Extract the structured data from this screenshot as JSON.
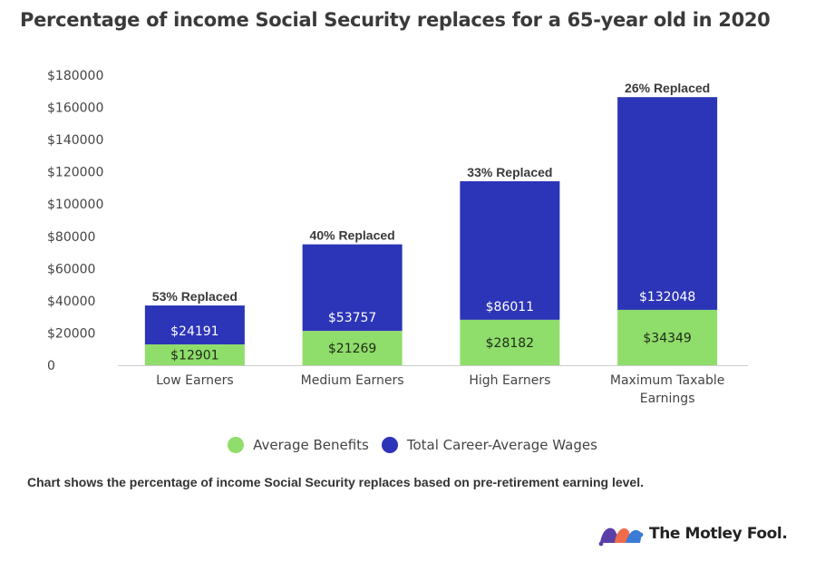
{
  "title": "Percentage of income Social Security replaces for a 65-year old in 2020",
  "caption": "Chart shows the percentage of income Social Security replaces based on pre-retirement earning level.",
  "brand": {
    "name": "The Motley Fool."
  },
  "colors": {
    "benefits": "#8fdd6a",
    "wages": "#2c34b7",
    "axis_text": "#444444",
    "baseline": "#cccccc"
  },
  "chart_data": {
    "type": "bar",
    "title": "Percentage of income Social Security replaces for a 65-year old in 2020",
    "categories": [
      "Low Earners",
      "Medium Earners",
      "High Earners",
      "Maximum Taxable Earnings"
    ],
    "category_lines": [
      [
        "Low Earners"
      ],
      [
        "Medium Earners"
      ],
      [
        "High Earners"
      ],
      [
        "Maximum Taxable",
        "Earnings"
      ]
    ],
    "series": [
      {
        "name": "Average Benefits",
        "values": [
          12901,
          21269,
          28182,
          34349
        ],
        "value_labels": [
          "$12901",
          "$21269",
          "$28182",
          "$34349"
        ]
      },
      {
        "name": "Total Career-Average Wages",
        "values": [
          24191,
          53757,
          86011,
          132048
        ],
        "value_labels": [
          "$24191",
          "$53757",
          "$86011",
          "$132048"
        ]
      }
    ],
    "stacked": true,
    "annotations": [
      "53% Replaced",
      "40% Replaced",
      "33% Replaced",
      "26% Replaced"
    ],
    "y_ticks": [
      0,
      20000,
      40000,
      60000,
      80000,
      100000,
      120000,
      140000,
      160000,
      180000
    ],
    "y_tick_labels": [
      "0",
      "$20000",
      "$40000",
      "$60000",
      "$80000",
      "$100000",
      "$120000",
      "$140000",
      "$160000",
      "$180000"
    ],
    "ylim": [
      0,
      180000
    ],
    "grid": false,
    "legend": "bottom-center"
  }
}
